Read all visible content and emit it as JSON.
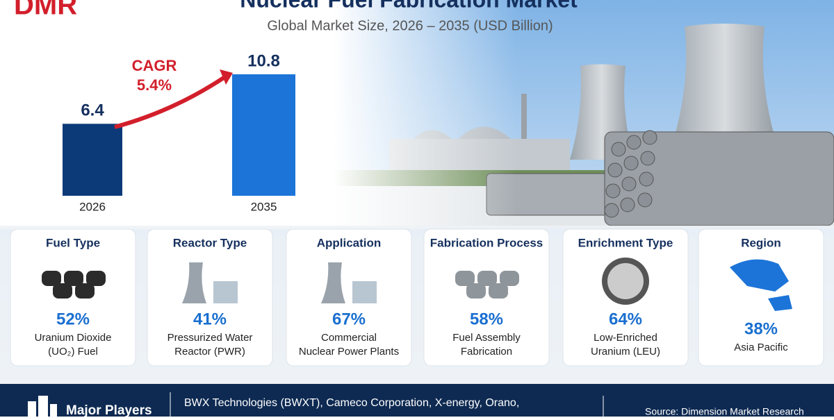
{
  "logo": "DMR",
  "chart_data": {
    "type": "bar",
    "title": "Nuclear Fuel Fabrication Market",
    "subtitle": "Global Market Size, 2026 – 2035 (USD Billion)",
    "categories": [
      "2026",
      "2035"
    ],
    "values": [
      6.4,
      10.8
    ],
    "colors": [
      "#0c3a78",
      "#1c74d8"
    ],
    "cagr_label": "CAGR",
    "cagr_value": "5.4%"
  },
  "segments": [
    {
      "title": "Fuel Type",
      "value": "52%",
      "lines": [
        "Uranium Dioxide",
        "(UO₂) Fuel"
      ]
    },
    {
      "title": "Reactor Type",
      "value": "41%",
      "lines": [
        "Pressurized Water",
        "Reactor (PWR)"
      ]
    },
    {
      "title": "Application",
      "value": "67%",
      "lines": [
        "Commercial",
        "Nuclear Power Plants"
      ]
    },
    {
      "title": "Fabrication Process",
      "value": "58%",
      "lines": [
        "Fuel Assembly",
        "Fabrication"
      ]
    },
    {
      "title": "Enrichment Type",
      "value": "64%",
      "lines": [
        "Low-Enriched",
        "Uranium (LEU)"
      ]
    },
    {
      "title": "Region",
      "value": "38%",
      "lines": [
        "Asia Pacific"
      ]
    }
  ],
  "footer": {
    "heading": "Major Players",
    "players": "BWX Technologies (BWXT), Cameco Corporation, X-energy, Orano,",
    "source": "Source: Dimension Market Research"
  }
}
